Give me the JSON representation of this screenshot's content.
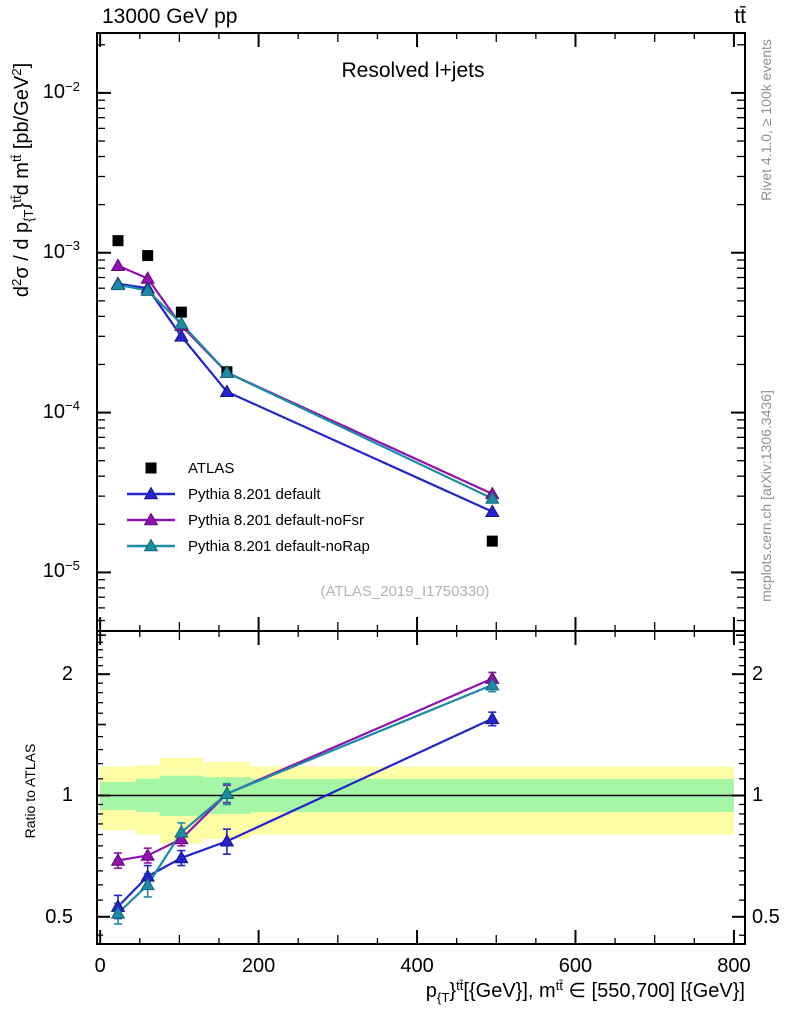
{
  "header": {
    "collision": "13000 GeV pp",
    "process": "tt̄"
  },
  "panel": {
    "title": "Resolved l+jets",
    "watermark": "(ATLAS_2019_I1750330)"
  },
  "side_notes": {
    "top": "Rivet 4.1.0, ≥ 100k events",
    "bottom": "mcplots.cern.ch [arXiv:1306.3436]"
  },
  "axes": {
    "x": {
      "ticks": [
        {
          "label": "0",
          "value": 0
        },
        {
          "label": "200",
          "value": 200
        },
        {
          "label": "400",
          "value": 400
        },
        {
          "label": "600",
          "value": 600
        },
        {
          "label": "800",
          "value": 800
        }
      ],
      "title_segments": [
        {
          "t": "p"
        },
        {
          "t": "{T",
          "m": "sub"
        },
        {
          "t": "}"
        },
        {
          "t": "tt̄",
          "m": "sup"
        },
        {
          "t": "[{GeV}], m"
        },
        {
          "t": "tt̄",
          "m": "sup"
        },
        {
          "t": " ∈ [550,700] [{GeV}]"
        }
      ]
    },
    "y_main": {
      "ticks": [
        {
          "mantissa": "10",
          "exp": "−2",
          "value": 0.01
        },
        {
          "mantissa": "10",
          "exp": "−3",
          "value": 0.001
        },
        {
          "mantissa": "10",
          "exp": "−4",
          "value": 0.0001
        },
        {
          "mantissa": "10",
          "exp": "−5",
          "value": 1e-05
        }
      ],
      "title_segments": [
        {
          "t": "d"
        },
        {
          "t": "2",
          "m": "sup"
        },
        {
          "t": "σ / d p"
        },
        {
          "t": "{T",
          "m": "sub"
        },
        {
          "t": "}"
        },
        {
          "t": "tt̄",
          "m": "sup"
        },
        {
          "t": "d m"
        },
        {
          "t": "tt̄",
          "m": "sup"
        },
        {
          "t": " [pb/GeV"
        },
        {
          "t": "2",
          "m": "sup"
        },
        {
          "t": "]"
        }
      ]
    },
    "y_ratio": {
      "label": "Ratio to ATLAS",
      "ticks": [
        {
          "label": "2",
          "value": 2
        },
        {
          "label": "1",
          "value": 1
        },
        {
          "label": "0.5",
          "value": 0.5
        }
      ]
    }
  },
  "chart_data": {
    "type": "line",
    "x": [
      22.5,
      60,
      102.5,
      160,
      495
    ],
    "xlim": [
      -4,
      814
    ],
    "ylim_main": [
      4.3e-06,
      0.0237
    ],
    "ylim_ratio": [
      0.428,
      2.56
    ],
    "x_minor_step": 50,
    "grid": false,
    "legend_position": "middle-left",
    "series": [
      {
        "name": "ATLAS",
        "slug": "atlas",
        "color": "#000000",
        "edge": "#000000",
        "marker": "square",
        "draw_line": false,
        "values": [
          0.00119,
          0.00096,
          0.000425,
          0.00018,
          1.57e-05
        ]
      },
      {
        "name": "Pythia 8.201 default",
        "slug": "pythia-8-201-default",
        "color": "#2424cc",
        "edge": "#15158a",
        "marker": "triangle",
        "draw_line": true,
        "values": [
          0.00064,
          0.0006,
          0.0003,
          0.000135,
          2.4e-05
        ],
        "ratio": [
          0.53,
          0.63,
          0.7,
          0.77,
          1.55
        ],
        "ratio_err": [
          0.035,
          0.04,
          0.03,
          0.055,
          0.06
        ]
      },
      {
        "name": "Pythia 8.201 default-noFsr",
        "slug": "pythia-8-201-default-nofsr",
        "color": "#9012b0",
        "edge": "#5f0b78",
        "marker": "triangle",
        "draw_line": true,
        "values": [
          0.00083,
          0.00069,
          0.00035,
          0.000178,
          3.1e-05
        ],
        "ratio": [
          0.69,
          0.71,
          0.78,
          1.01,
          1.95
        ],
        "ratio_err": [
          0.03,
          0.03,
          0.03,
          0.05,
          0.07
        ]
      },
      {
        "name": "Pythia 8.201 default-noRap",
        "slug": "pythia-8-201-default-norap",
        "color": "#1e8ba4",
        "edge": "#136677",
        "marker": "triangle",
        "draw_line": true,
        "values": [
          0.00063,
          0.00058,
          0.00036,
          0.000178,
          2.9e-05
        ],
        "ratio": [
          0.51,
          0.6,
          0.81,
          1.01,
          1.88
        ],
        "ratio_err": [
          0.03,
          0.04,
          0.045,
          0.06,
          0.07
        ]
      }
    ],
    "ratio_reference": 1,
    "ratio_bands": {
      "edges": [
        0,
        45,
        75,
        130,
        190,
        800
      ],
      "yellow": [
        [
          0.82,
          1.18
        ],
        [
          0.8,
          1.19
        ],
        [
          0.76,
          1.24
        ],
        [
          0.78,
          1.21
        ],
        [
          0.8,
          1.18
        ]
      ],
      "green": [
        [
          0.92,
          1.08
        ],
        [
          0.91,
          1.1
        ],
        [
          0.89,
          1.12
        ],
        [
          0.9,
          1.11
        ],
        [
          0.91,
          1.1
        ]
      ],
      "yellow_color": "#fdfda6",
      "green_color": "#a4f6a4"
    },
    "ratio_minor_ticks": [
      0.45,
      0.55,
      0.6,
      0.65,
      0.7,
      0.75,
      0.8,
      0.85,
      0.9,
      0.95,
      1.1,
      1.2,
      1.3,
      1.4,
      1.6,
      1.7,
      1.8,
      1.9,
      2.1,
      2.2,
      2.3,
      2.4
    ],
    "ratio_medium_ticks": [
      1.5,
      2.5
    ]
  }
}
